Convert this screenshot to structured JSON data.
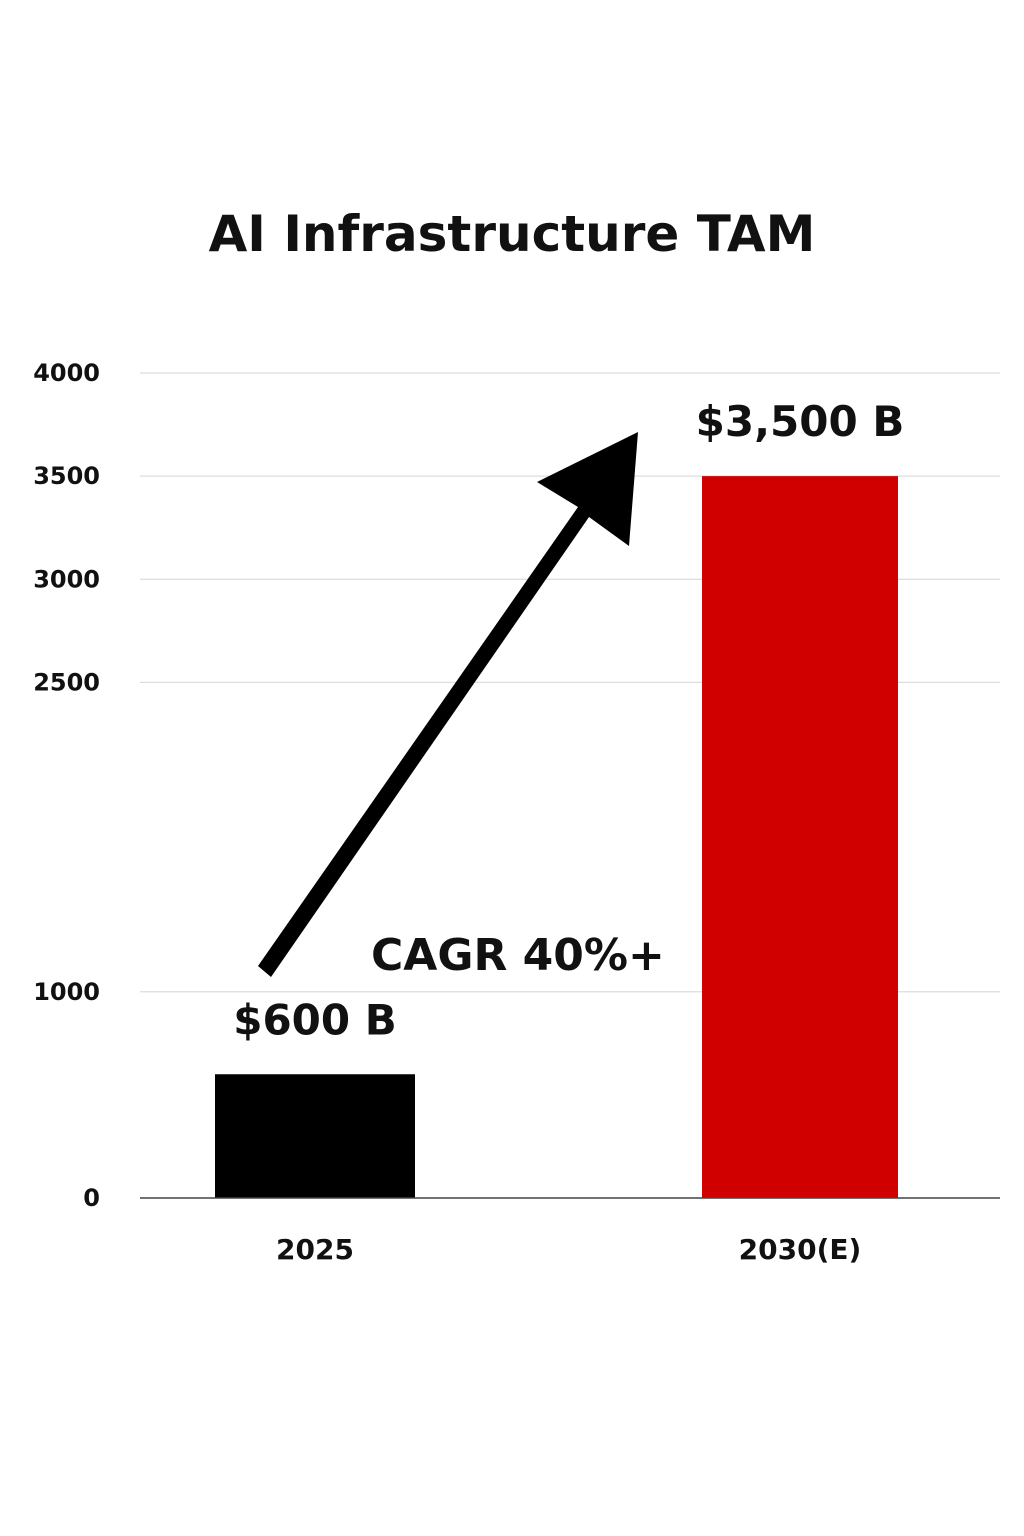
{
  "chart_data": {
    "type": "bar",
    "title": "AI Infrastructure TAM",
    "xlabel": "",
    "ylabel": "",
    "categories": [
      "2025",
      "2030(E)"
    ],
    "values": [
      600,
      3500
    ],
    "value_labels": [
      "$600 B",
      "$3,500 B"
    ],
    "bar_colors": [
      "#000000",
      "#d00000"
    ],
    "yticks": [
      0,
      1000,
      2500,
      3000,
      3500,
      4000
    ],
    "ylim": [
      0,
      4000
    ],
    "grid": true,
    "legend": "none",
    "annotation": {
      "text": "CAGR 40%+",
      "arrow": "up-right"
    }
  }
}
